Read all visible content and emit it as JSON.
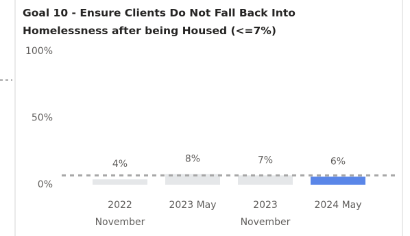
{
  "chart_data": {
    "type": "bar",
    "title": "Goal 10 - Ensure Clients Do Not Fall Back Into Homelessness after being Housed (<=7%)",
    "categories": [
      "2022 November",
      "2023 May",
      "2023 November",
      "2024 May"
    ],
    "values": [
      4,
      8,
      7,
      6
    ],
    "value_labels": [
      "4%",
      "8%",
      "7%",
      "6%"
    ],
    "colors": [
      "#e5e7e9",
      "#e5e7e9",
      "#e5e7e9",
      "#5a86e8"
    ],
    "ylim": [
      0,
      100
    ],
    "yticks": [
      {
        "value": 0,
        "label": "0%"
      },
      {
        "value": 50,
        "label": "50%"
      },
      {
        "value": 100,
        "label": "100%"
      }
    ],
    "reference_line": 7,
    "grid": false
  }
}
